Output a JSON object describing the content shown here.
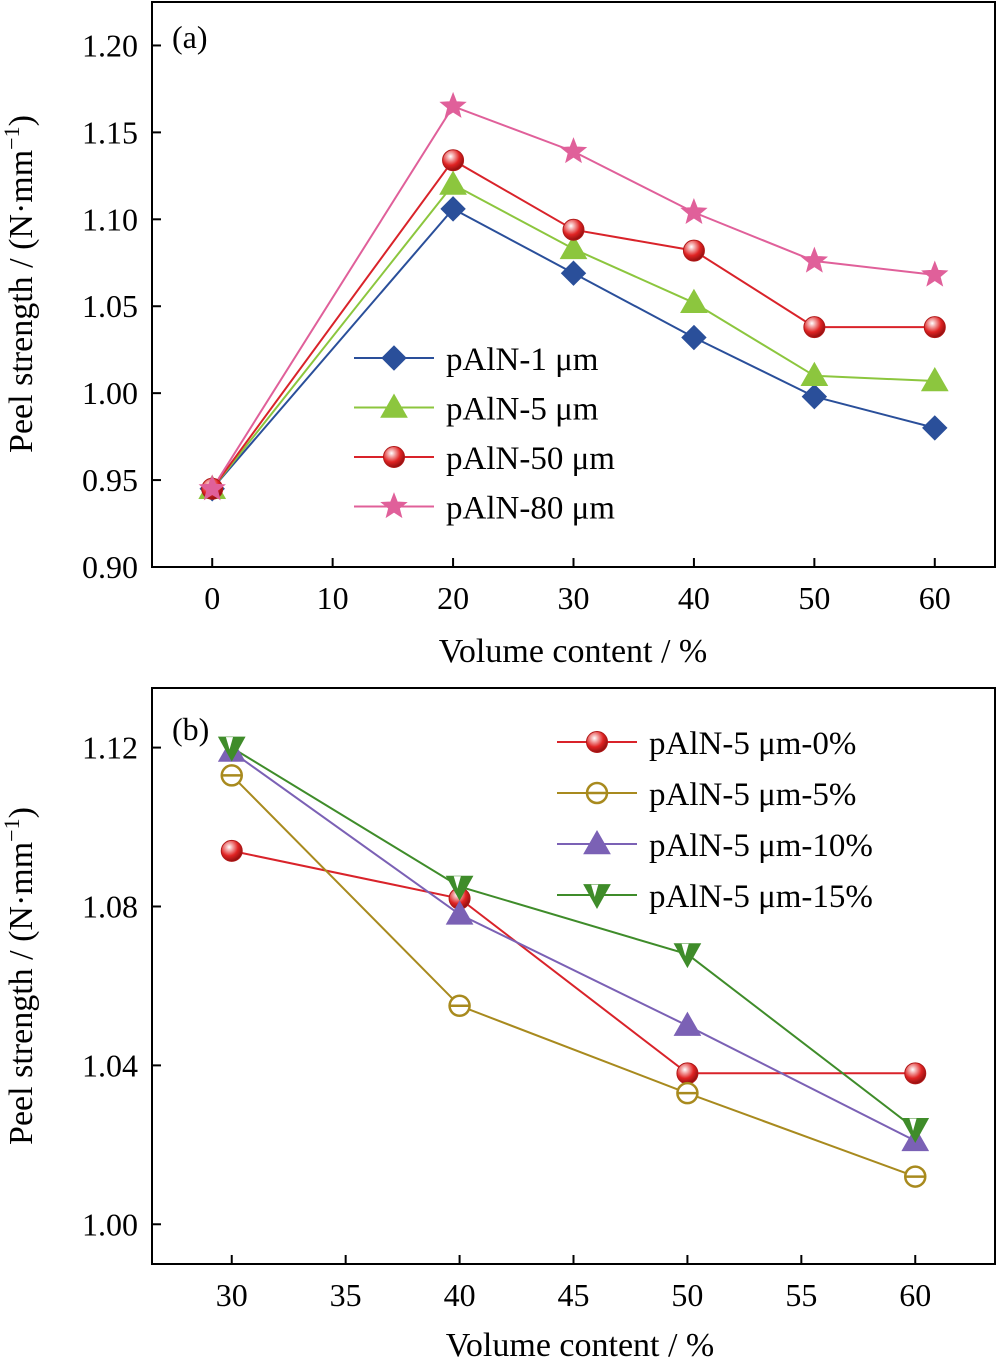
{
  "chart_data": [
    {
      "type": "line",
      "panel_label": "(a)",
      "xlabel": "Volume content / %",
      "ylabel": "Peel strength / (N·mm",
      "ylabel_sup": "−1",
      "ylabel_close": ")",
      "xlim": [
        -5,
        65
      ],
      "ylim": [
        0.9,
        1.225
      ],
      "xticks": [
        0,
        10,
        20,
        30,
        40,
        50,
        60
      ],
      "xtick_labels": [
        "0",
        "10",
        "20",
        "30",
        "40",
        "50",
        "60"
      ],
      "yticks": [
        0.9,
        0.95,
        1.0,
        1.05,
        1.1,
        1.15,
        1.2
      ],
      "ytick_labels": [
        "0.90",
        "0.95",
        "1.00",
        "1.05",
        "1.10",
        "1.15",
        "1.20"
      ],
      "x": [
        0,
        20,
        30,
        40,
        50,
        60
      ],
      "legend_position": "center-left",
      "series": [
        {
          "name": "pAlN-1 μm",
          "values": [
            0.945,
            1.106,
            1.069,
            1.032,
            0.998,
            0.98
          ],
          "color": "#2a4f9a",
          "marker": "diamond"
        },
        {
          "name": "pAlN-5 μm",
          "values": [
            0.945,
            1.12,
            1.083,
            1.052,
            1.01,
            1.007
          ],
          "color": "#8cc63e",
          "marker": "triangle-up"
        },
        {
          "name": "pAlN-50 μm",
          "values": [
            0.945,
            1.134,
            1.094,
            1.082,
            1.038,
            1.038
          ],
          "color": "#d9232a",
          "marker": "sphere"
        },
        {
          "name": "pAlN-80 μm",
          "values": [
            0.945,
            1.165,
            1.139,
            1.104,
            1.076,
            1.068
          ],
          "color": "#e0609a",
          "marker": "star"
        }
      ]
    },
    {
      "type": "line",
      "panel_label": "(b)",
      "xlabel": "Volume content / %",
      "ylabel": "Peel strength / (N·mm",
      "ylabel_sup": "−1",
      "ylabel_close": ")",
      "xlim": [
        26.5,
        63.5
      ],
      "ylim": [
        0.99,
        1.135
      ],
      "xticks": [
        30,
        35,
        40,
        45,
        50,
        55,
        60
      ],
      "xtick_labels": [
        "30",
        "35",
        "40",
        "45",
        "50",
        "55",
        "60"
      ],
      "yticks": [
        1.0,
        1.04,
        1.08,
        1.12
      ],
      "ytick_labels": [
        "1.00",
        "1.04",
        "1.08",
        "1.12"
      ],
      "x": [
        30,
        40,
        50,
        60
      ],
      "legend_position": "top-right",
      "series": [
        {
          "name": "pAlN-5 μm-0%",
          "values": [
            1.094,
            1.082,
            1.038,
            1.038
          ],
          "color": "#d9232a",
          "marker": "sphere"
        },
        {
          "name": "pAlN-5 μm-5%",
          "values": [
            1.113,
            1.055,
            1.033,
            1.012
          ],
          "color": "#a88a1e",
          "marker": "circle-open-bar"
        },
        {
          "name": "pAlN-5 μm-10%",
          "values": [
            1.119,
            1.078,
            1.05,
            1.021
          ],
          "color": "#7b61b5",
          "marker": "triangle-up"
        },
        {
          "name": "pAlN-5 μm-15%",
          "values": [
            1.12,
            1.085,
            1.068,
            1.024
          ],
          "color": "#3f8c2a",
          "marker": "triangle-down-open"
        }
      ]
    }
  ]
}
